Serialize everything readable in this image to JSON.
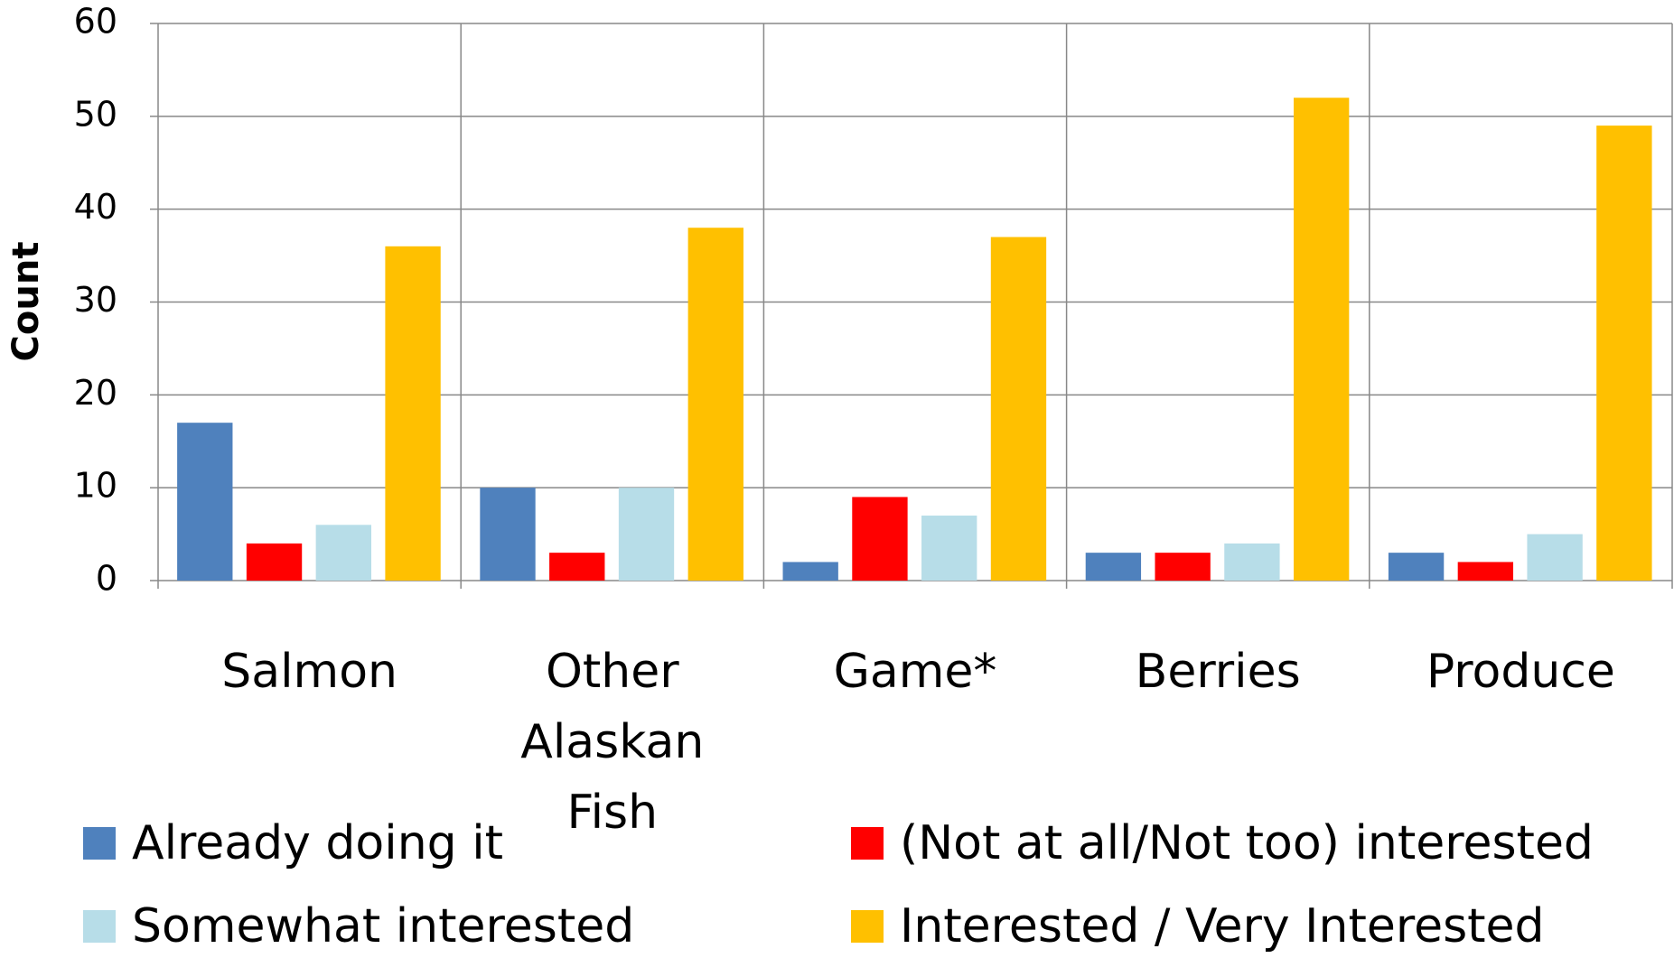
{
  "chart_data": {
    "type": "bar",
    "y_label": "Count",
    "categories": [
      "Salmon",
      "Other Alaskan Fish",
      "Game*",
      "Berries",
      "Produce"
    ],
    "series": [
      {
        "name": "Already doing it",
        "color": "#4f81bd",
        "values": [
          17,
          10,
          2,
          3,
          3
        ]
      },
      {
        "name": "(Not at all/Not too) interested",
        "color": "#ff0000",
        "values": [
          4,
          3,
          9,
          3,
          2
        ]
      },
      {
        "name": "Somewhat interested",
        "color": "#b7dde8",
        "values": [
          6,
          10,
          7,
          4,
          5
        ]
      },
      {
        "name": "Interested / Very Interested",
        "color": "#ffc000",
        "values": [
          36,
          38,
          37,
          52,
          49
        ]
      }
    ],
    "ylim": [
      0,
      60
    ],
    "yticks": [
      0,
      10,
      20,
      30,
      40,
      50,
      60
    ],
    "grid": true
  }
}
